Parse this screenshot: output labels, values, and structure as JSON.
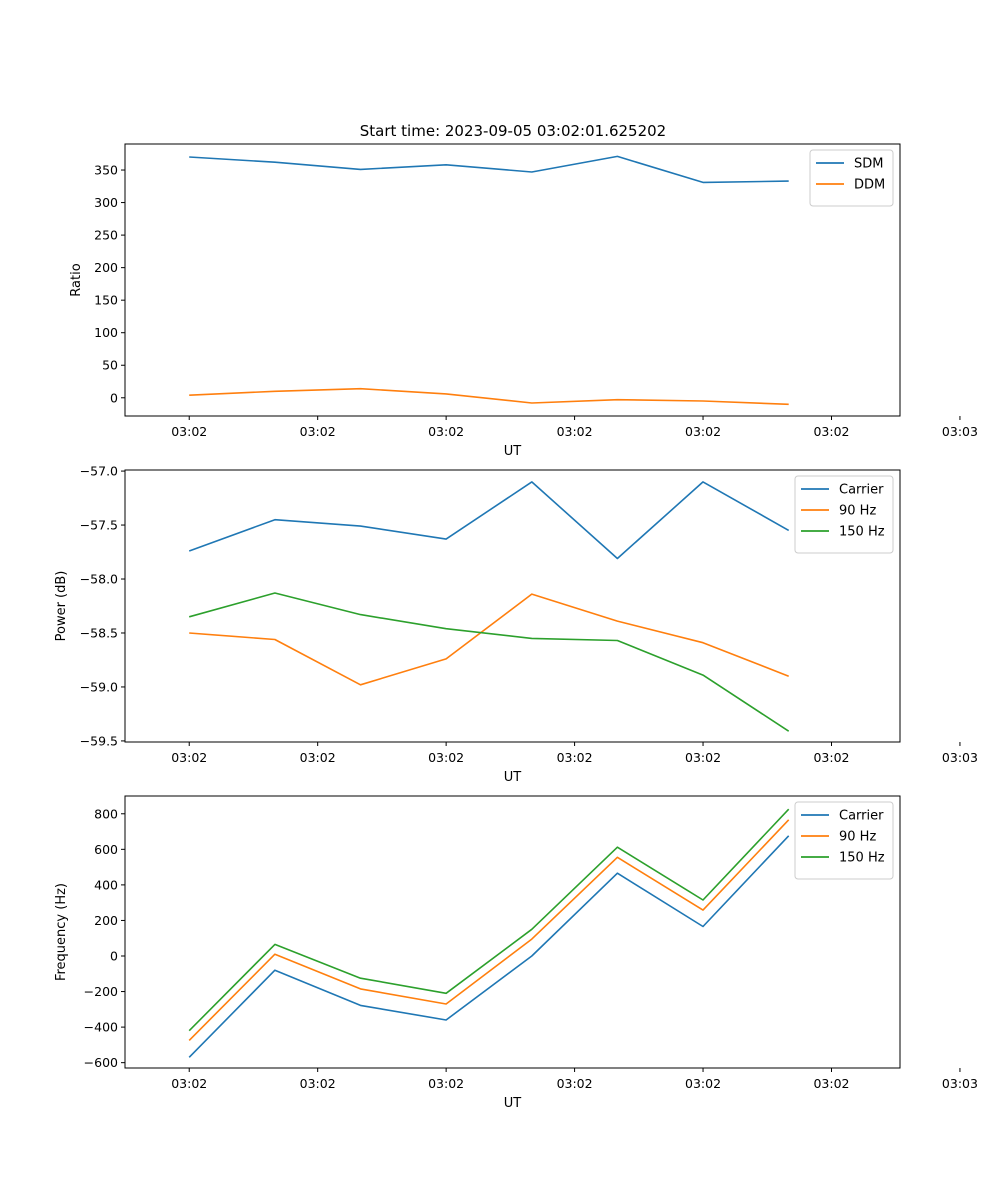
{
  "figure_title": "Start time: 2023-09-05 03:02:01.625202",
  "colors": {
    "blue": "#1f77b4",
    "orange": "#ff7f0e",
    "green": "#2ca02c",
    "axis": "#000000"
  },
  "chart_data": [
    {
      "type": "line",
      "title": "Start time: 2023-09-05 03:02:01.625202",
      "xlabel": "UT",
      "ylabel": "Ratio",
      "legend": "top-right",
      "xlim": [
        -0.75,
        8.3
      ],
      "ylim": [
        -28,
        390
      ],
      "x_ticks": [
        0,
        1.5,
        3,
        4.5,
        6,
        7.5,
        9
      ],
      "x_tick_labels": [
        "03:02",
        "03:02",
        "03:02",
        "03:02",
        "03:02",
        "03:02",
        "03:03"
      ],
      "y_ticks": [
        0,
        50,
        100,
        150,
        200,
        250,
        300,
        350
      ],
      "y_tick_labels": [
        "0",
        "50",
        "100",
        "150",
        "200",
        "250",
        "300",
        "350"
      ],
      "x": [
        0,
        1,
        2,
        3,
        4,
        5,
        6,
        7
      ],
      "series": [
        {
          "name": "SDM",
          "color": "#1f77b4",
          "values": [
            370,
            362,
            351,
            358,
            347,
            371,
            331,
            333
          ]
        },
        {
          "name": "DDM",
          "color": "#ff7f0e",
          "values": [
            4,
            10,
            14,
            6,
            -8,
            -3,
            -5,
            -10
          ]
        }
      ]
    },
    {
      "type": "line",
      "title": "",
      "xlabel": "UT",
      "ylabel": "Power (dB)",
      "legend": "top-right",
      "xlim": [
        -0.75,
        8.3
      ],
      "ylim": [
        -59.51,
        -56.99
      ],
      "x_ticks": [
        0,
        1.5,
        3,
        4.5,
        6,
        7.5,
        9
      ],
      "x_tick_labels": [
        "03:02",
        "03:02",
        "03:02",
        "03:02",
        "03:02",
        "03:02",
        "03:03"
      ],
      "y_ticks": [
        -59.5,
        -59.0,
        -58.5,
        -58.0,
        -57.5,
        -57.0
      ],
      "y_tick_labels": [
        "−59.5",
        "−59.0",
        "−58.5",
        "−58.0",
        "−57.5",
        "−57.0"
      ],
      "x": [
        0,
        1,
        2,
        3,
        4,
        5,
        6,
        7
      ],
      "series": [
        {
          "name": "Carrier",
          "color": "#1f77b4",
          "values": [
            -57.74,
            -57.45,
            -57.51,
            -57.63,
            -57.1,
            -57.81,
            -57.1,
            -57.55
          ]
        },
        {
          "name": "90 Hz",
          "color": "#ff7f0e",
          "values": [
            -58.5,
            -58.56,
            -58.98,
            -58.74,
            -58.14,
            -58.39,
            -58.59,
            -58.9
          ]
        },
        {
          "name": "150 Hz",
          "color": "#2ca02c",
          "values": [
            -58.35,
            -58.13,
            -58.33,
            -58.46,
            -58.55,
            -58.57,
            -58.89,
            -59.41
          ]
        }
      ]
    },
    {
      "type": "line",
      "title": "",
      "xlabel": "UT",
      "ylabel": "Frequency (Hz)",
      "legend": "top-right",
      "xlim": [
        -0.75,
        8.3
      ],
      "ylim": [
        -630,
        900
      ],
      "x_ticks": [
        0,
        1.5,
        3,
        4.5,
        6,
        7.5,
        9
      ],
      "x_tick_labels": [
        "03:02",
        "03:02",
        "03:02",
        "03:02",
        "03:02",
        "03:02",
        "03:03"
      ],
      "y_ticks": [
        -600,
        -400,
        -200,
        0,
        200,
        400,
        600,
        800
      ],
      "y_tick_labels": [
        "−600",
        "−400",
        "−200",
        "0",
        "200",
        "400",
        "600",
        "800"
      ],
      "x": [
        0,
        1,
        2,
        3,
        4,
        5,
        6,
        7
      ],
      "series": [
        {
          "name": "Carrier",
          "color": "#1f77b4",
          "values": [
            -570,
            -80,
            -278,
            -360,
            0,
            466,
            166,
            676
          ]
        },
        {
          "name": "90 Hz",
          "color": "#ff7f0e",
          "values": [
            -475,
            10,
            -185,
            -270,
            95,
            555,
            258,
            766
          ]
        },
        {
          "name": "150 Hz",
          "color": "#2ca02c",
          "values": [
            -420,
            65,
            -125,
            -210,
            150,
            612,
            315,
            826
          ]
        }
      ]
    }
  ]
}
